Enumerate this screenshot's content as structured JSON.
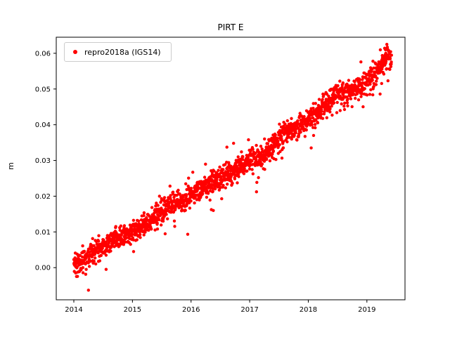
{
  "chart_data": {
    "type": "scatter",
    "title": "PIRT E",
    "xlabel": "",
    "ylabel": "m",
    "xlim": [
      2013.7,
      2019.65
    ],
    "ylim": [
      -0.009,
      0.0645
    ],
    "xticks": [
      2014,
      2015,
      2016,
      2017,
      2018,
      2019
    ],
    "yticks": [
      0.0,
      0.01,
      0.02,
      0.03,
      0.04,
      0.05,
      0.06
    ],
    "grid": false,
    "legend_position": "upper left",
    "series": [
      {
        "name": "repro2018a (IGS14)",
        "color": "#ff0000",
        "marker": "circle",
        "marker_radius_px": 2.2,
        "n_points": 1900,
        "x_range": [
          2014.0,
          2019.42
        ],
        "noise_sigma": 0.0016,
        "trend_anchors": {
          "x": [
            2014.0,
            2014.15,
            2014.3,
            2014.6,
            2014.85,
            2015.0,
            2015.3,
            2015.6,
            2015.8,
            2016.0,
            2016.4,
            2016.8,
            2017.0,
            2017.25,
            2017.6,
            2017.8,
            2018.0,
            2018.2,
            2018.45,
            2018.7,
            2019.0,
            2019.2,
            2019.33,
            2019.42
          ],
          "y": [
            0.0,
            0.002,
            0.004,
            0.007,
            0.009,
            0.01,
            0.013,
            0.017,
            0.018,
            0.02,
            0.024,
            0.028,
            0.03,
            0.031,
            0.038,
            0.039,
            0.041,
            0.044,
            0.048,
            0.049,
            0.052,
            0.055,
            0.06,
            0.058
          ]
        },
        "outliers": [
          {
            "x": 2014.25,
            "y": -0.0063
          },
          {
            "x": 2014.55,
            "y": -0.0005
          },
          {
            "x": 2015.02,
            "y": 0.0045
          },
          {
            "x": 2016.38,
            "y": 0.016
          },
          {
            "x": 2017.15,
            "y": 0.0252
          },
          {
            "x": 2018.05,
            "y": 0.0335
          },
          {
            "x": 2018.09,
            "y": 0.037
          },
          {
            "x": 2019.05,
            "y": 0.0485
          }
        ]
      }
    ]
  }
}
